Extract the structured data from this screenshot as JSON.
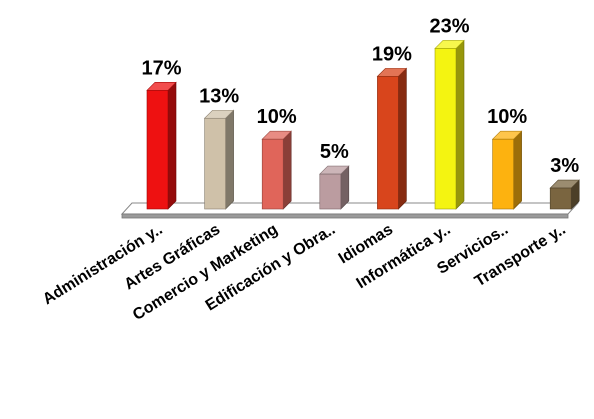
{
  "chart_data": {
    "type": "bar",
    "categories": [
      "Administración y..",
      "Artes Gráficas",
      "Comercio y Marketing",
      "Edificación y Obra..",
      "Idiomas",
      "Informática y..",
      "Servicios..",
      "Transporte y.."
    ],
    "values": [
      17,
      13,
      10,
      5,
      19,
      23,
      10,
      3
    ],
    "value_labels": [
      "17%",
      "13%",
      "10%",
      "5%",
      "19%",
      "23%",
      "10%",
      "3%"
    ],
    "colors": [
      "#ee1111",
      "#cfc1a9",
      "#e0655a",
      "#bb9ca0",
      "#d8451c",
      "#f4f411",
      "#fdb20f",
      "#7a6540"
    ],
    "title": "",
    "xlabel": "",
    "ylabel": "",
    "ylim": [
      0,
      23
    ],
    "grid": false,
    "legend": "none",
    "style": "3d-column"
  }
}
